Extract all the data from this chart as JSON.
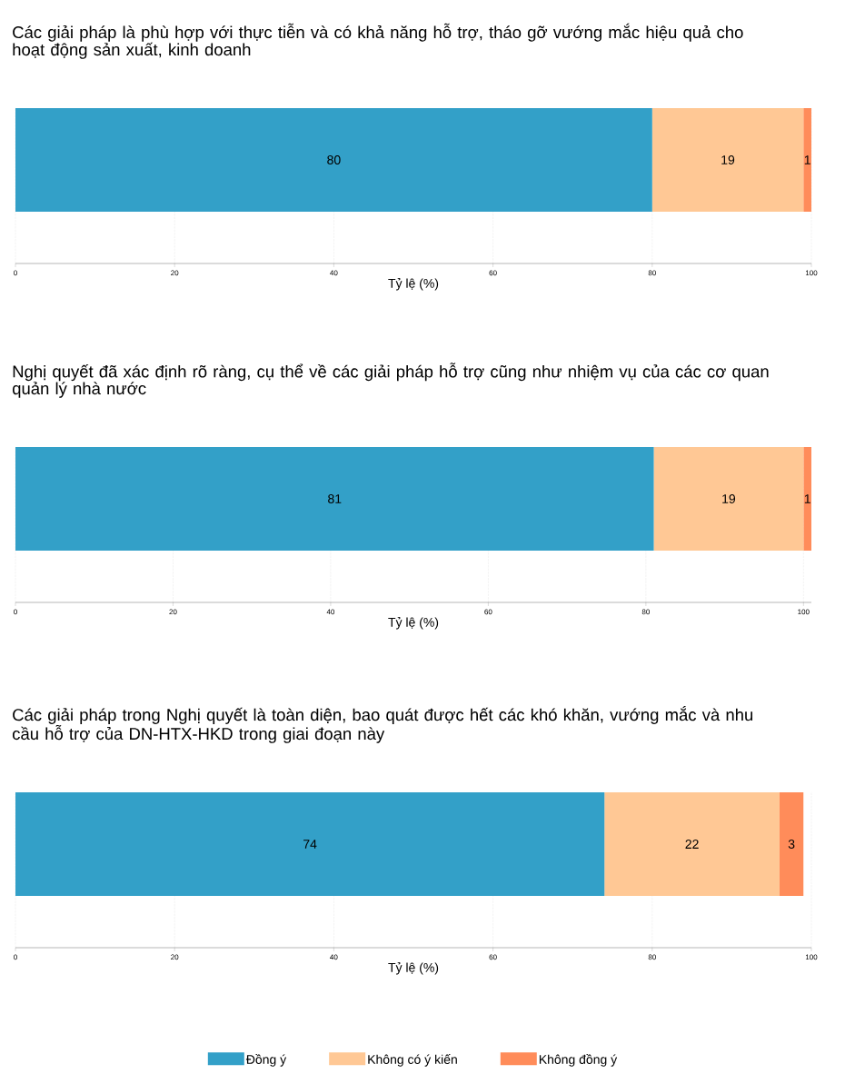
{
  "chart_data": [
    {
      "type": "bar",
      "orientation": "horizontal",
      "stacked": true,
      "title": "Các giải pháp là phù hợp với thực tiễn và có khả năng hỗ trợ, tháo gỡ vướng mắc hiệu quả cho hoạt động sản xuất, kinh doanh",
      "xlabel": "Tỷ lệ (%)",
      "categories": [
        null
      ],
      "series": [
        {
          "color": "#33a0c8",
          "values": [
            80
          ]
        },
        {
          "color": "#ffc895",
          "values": [
            19
          ]
        },
        {
          "color": "#ff8c5a",
          "values": [
            1
          ]
        }
      ],
      "xlim": [
        0,
        100
      ],
      "xticks": [
        0,
        20,
        40,
        60,
        80,
        100
      ],
      "grid": "x",
      "data_labels": true
    },
    {
      "type": "bar",
      "orientation": "horizontal",
      "stacked": true,
      "title": "Nghị quyết đã xác định rõ ràng, cụ thể về các giải pháp hỗ trợ cũng như nhiệm vụ của các cơ quan quản lý nhà nước",
      "xlabel": "Tỷ lệ (%)",
      "categories": [
        null
      ],
      "series": [
        {
          "color": "#33a0c8",
          "values": [
            81
          ]
        },
        {
          "color": "#ffc895",
          "values": [
            19
          ]
        },
        {
          "color": "#ff8c5a",
          "values": [
            1
          ]
        }
      ],
      "xlim": [
        0,
        101
      ],
      "xticks": [
        0,
        20,
        40,
        60,
        80,
        100
      ],
      "grid": "x",
      "data_labels": true
    },
    {
      "type": "bar",
      "orientation": "horizontal",
      "stacked": true,
      "title": "Các giải pháp trong Nghị quyết là toàn diện, bao quát được hết các khó khăn, vướng mắc và nhu cầu hỗ trợ của DN-HTX-HKD trong giai đoạn này",
      "xlabel": "Tỷ lệ (%)",
      "categories": [
        null
      ],
      "series": [
        {
          "name": "Đồng ý",
          "color": "#33a0c8",
          "values": [
            74
          ]
        },
        {
          "name": "Không có ý kiến",
          "color": "#ffc895",
          "values": [
            22
          ]
        },
        {
          "name": "Không đồng ý",
          "color": "#ff8c5a",
          "values": [
            3
          ]
        }
      ],
      "xlim": [
        0,
        100
      ],
      "xticks": [
        0,
        20,
        40,
        60,
        80,
        100
      ],
      "grid": "x",
      "data_labels": true,
      "legend": "bottom"
    }
  ]
}
